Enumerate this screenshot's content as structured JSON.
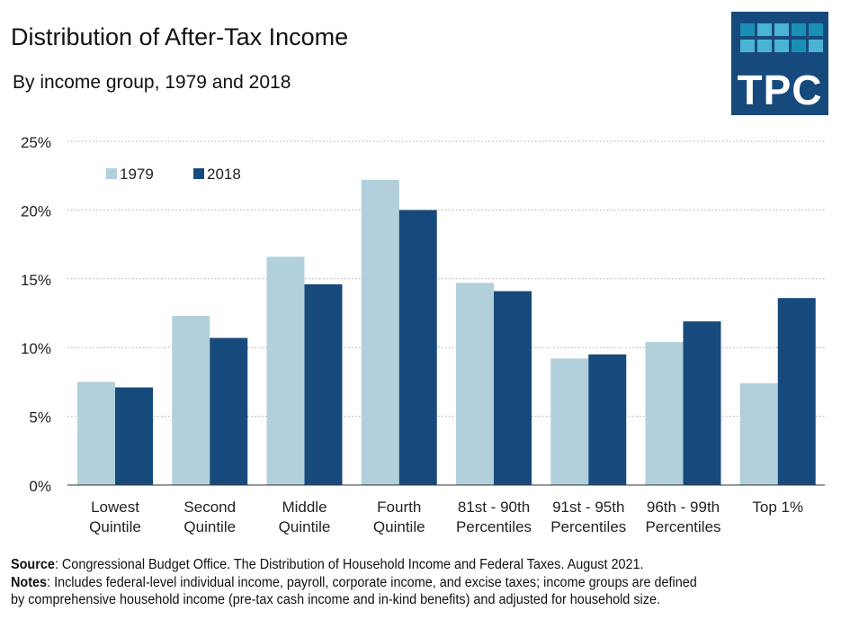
{
  "chart_data": {
    "type": "bar",
    "title": "Distribution of After-Tax Income",
    "subtitle": "By income group, 1979 and 2018",
    "categories": [
      [
        "Lowest",
        "Quintile"
      ],
      [
        "Second",
        "Quintile"
      ],
      [
        "Middle",
        "Quintile"
      ],
      [
        "Fourth",
        "Quintile"
      ],
      [
        "81st - 90th",
        "Percentiles"
      ],
      [
        "91st - 95th",
        "Percentiles"
      ],
      [
        "96th - 99th",
        "Percentiles"
      ],
      [
        "Top 1%"
      ]
    ],
    "series": [
      {
        "name": "1979",
        "color": "#b2d0db",
        "values": [
          7.5,
          12.3,
          16.6,
          22.2,
          14.7,
          9.2,
          10.4,
          7.4
        ]
      },
      {
        "name": "2018",
        "color": "#174a7c",
        "values": [
          7.1,
          10.7,
          14.6,
          20.0,
          14.1,
          9.5,
          11.9,
          13.6
        ]
      }
    ],
    "ylim": [
      0,
      25
    ],
    "yticks": [
      0,
      5,
      10,
      15,
      20,
      25
    ],
    "ytick_labels": [
      "0%",
      "5%",
      "10%",
      "15%",
      "20%",
      "25%"
    ],
    "grid": "horizontal dotted",
    "legend": "top-left"
  },
  "logo": {
    "text": "TPC",
    "bg": "#174a7c"
  },
  "footer": {
    "source_label": "Source",
    "source_text": ": Congressional Budget Office. The Distribution of Household Income and Federal Taxes. August 2021.",
    "notes_label": "Notes",
    "notes_text_1": ": Includes federal-level individual income, payroll, corporate income, and excise taxes; income groups are defined",
    "notes_text_2": "by comprehensive household income (pre-tax cash income and in-kind benefits) and adjusted for household size."
  }
}
